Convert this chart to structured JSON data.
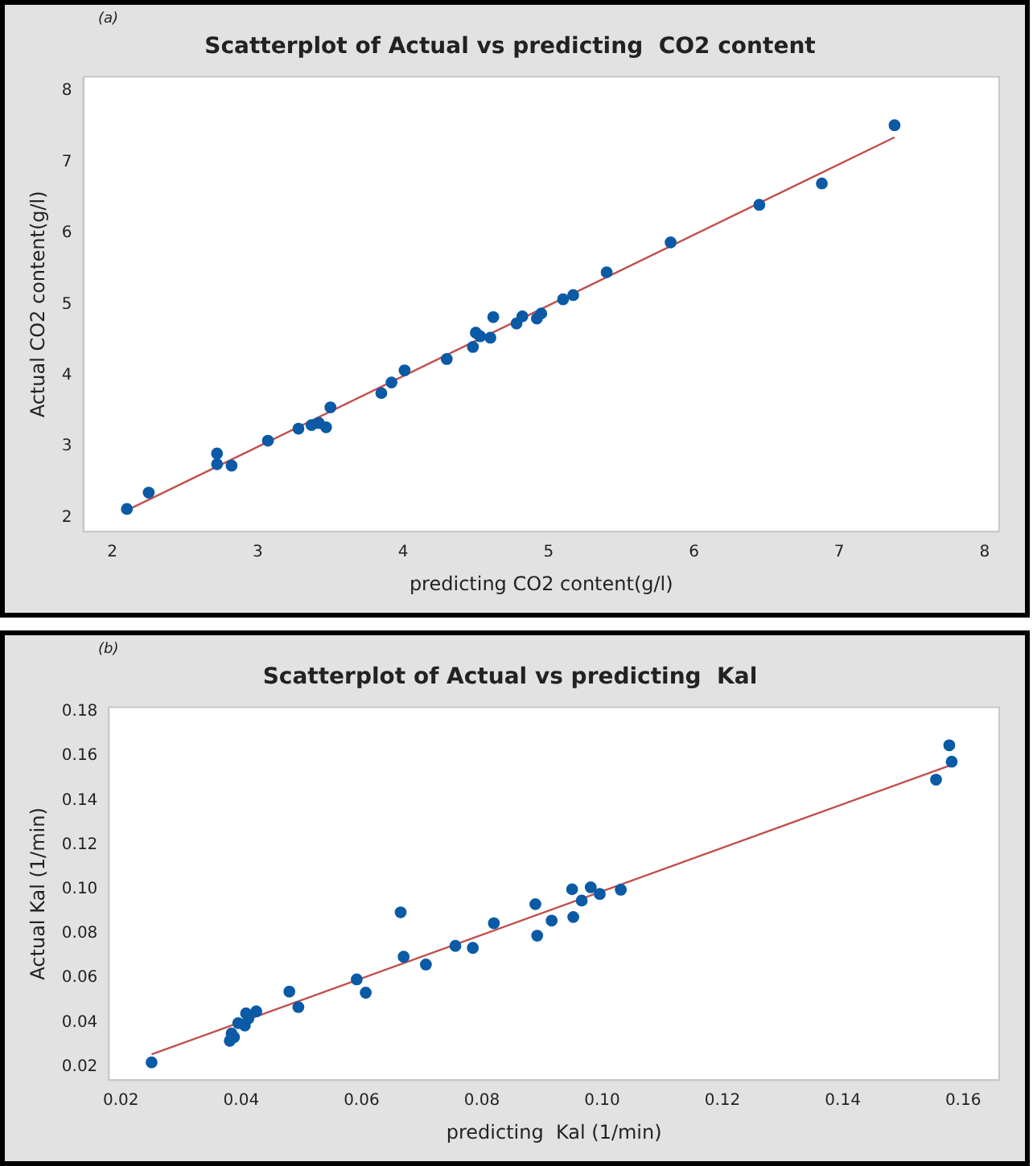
{
  "chart_data": [
    {
      "type": "scatter",
      "title": "Scatterplot of Actual vs predicting  CO2 content",
      "xlabel": "predicting CO2 content(g/l)",
      "ylabel": "Actual CO2 content(g/l)",
      "annotations": [
        "(a)"
      ],
      "xlim": [
        1.8,
        8.1
      ],
      "xticks": [
        2,
        3,
        4,
        5,
        6,
        7,
        8
      ],
      "ylim": [
        1.8,
        8.2
      ],
      "yticks": [
        2,
        3,
        4,
        5,
        6,
        7,
        8
      ],
      "grid": false,
      "legend": false,
      "series": [
        {
          "marker": "circle",
          "color": "#0b5aa6",
          "x": [
            2.1,
            2.25,
            2.72,
            2.72,
            2.82,
            3.07,
            3.28,
            3.37,
            3.42,
            3.47,
            3.5,
            3.85,
            3.92,
            4.01,
            4.3,
            4.48,
            4.5,
            4.53,
            4.6,
            4.62,
            4.78,
            4.82,
            4.92,
            4.95,
            5.1,
            5.17,
            5.4,
            5.84,
            6.45,
            6.88,
            7.38
          ],
          "values": [
            2.12,
            2.35,
            2.9,
            2.75,
            2.73,
            3.08,
            3.25,
            3.3,
            3.33,
            3.27,
            3.55,
            3.75,
            3.9,
            4.07,
            4.23,
            4.4,
            4.6,
            4.55,
            4.53,
            4.82,
            4.73,
            4.83,
            4.8,
            4.87,
            5.07,
            5.13,
            5.45,
            5.87,
            6.4,
            6.7,
            7.52
          ]
        },
        {
          "type": "line",
          "marker": "none",
          "color": "#c0504d",
          "x": [
            2.1,
            7.38
          ],
          "values": [
            2.1,
            7.35
          ]
        }
      ]
    },
    {
      "type": "scatter",
      "title": "Scatterplot of Actual vs predicting  Kal",
      "xlabel": "predicting  Kal (1/min)",
      "ylabel": "Actual Kal (1/min)",
      "annotations": [
        "(b)"
      ],
      "xlim": [
        0.018,
        0.166
      ],
      "xticks": [
        {
          "value": 0.02,
          "label": "0.02"
        },
        {
          "value": 0.04,
          "label": "0.04"
        },
        {
          "value": 0.06,
          "label": "0.06"
        },
        {
          "value": 0.08,
          "label": "0.08"
        },
        {
          "value": 0.1,
          "label": "0.10"
        },
        {
          "value": 0.12,
          "label": "0.12"
        },
        {
          "value": 0.14,
          "label": "0.14"
        },
        {
          "value": 0.16,
          "label": "0.16"
        }
      ],
      "ylim": [
        0.014,
        0.182
      ],
      "yticks": [
        {
          "value": 0.02,
          "label": "0.02"
        },
        {
          "value": 0.04,
          "label": "0.04"
        },
        {
          "value": 0.06,
          "label": "0.06"
        },
        {
          "value": 0.08,
          "label": "0.08"
        },
        {
          "value": 0.1,
          "label": "0.10"
        },
        {
          "value": 0.12,
          "label": "0.12"
        },
        {
          "value": 0.14,
          "label": "0.14"
        },
        {
          "value": 0.16,
          "label": "0.16"
        },
        {
          "value": 0.18,
          "label": "0.18"
        }
      ],
      "grid": false,
      "legend": false,
      "series": [
        {
          "marker": "circle",
          "color": "#0b5aa6",
          "x": [
            0.0251,
            0.0381,
            0.0384,
            0.0388,
            0.0395,
            0.0406,
            0.0408,
            0.0412,
            0.0425,
            0.048,
            0.0495,
            0.0592,
            0.0607,
            0.0665,
            0.067,
            0.0707,
            0.0756,
            0.0785,
            0.082,
            0.0889,
            0.0892,
            0.0916,
            0.095,
            0.0952,
            0.0966,
            0.0981,
            0.0996,
            0.1031,
            0.1555,
            0.1577,
            0.1581
          ],
          "values": [
            0.022,
            0.0317,
            0.035,
            0.0334,
            0.0397,
            0.0386,
            0.0441,
            0.0418,
            0.045,
            0.0539,
            0.0469,
            0.0594,
            0.0534,
            0.0896,
            0.0696,
            0.0661,
            0.0745,
            0.0736,
            0.0847,
            0.0933,
            0.0791,
            0.0859,
            0.1,
            0.0875,
            0.0949,
            0.1009,
            0.0979,
            0.0998,
            0.1494,
            0.1649,
            0.1575
          ]
        },
        {
          "type": "line",
          "marker": "none",
          "color": "#c0504d",
          "x": [
            0.0251,
            0.1581
          ],
          "values": [
            0.0256,
            0.1561
          ]
        }
      ]
    }
  ]
}
